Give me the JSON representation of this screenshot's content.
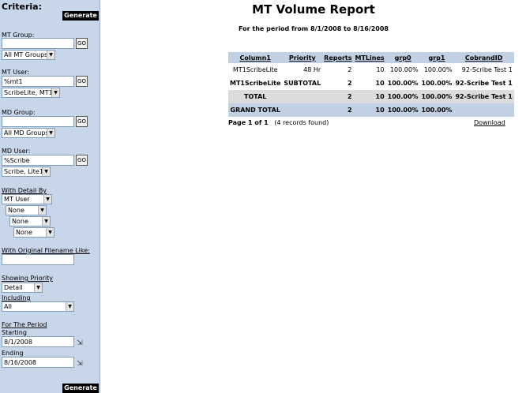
{
  "sidebar": {
    "title": "Criteria:",
    "generate_label": "Generate",
    "mt_group": {
      "label": "MT Group:",
      "value": "",
      "go": "GO",
      "select": "All MT Groups"
    },
    "mt_user": {
      "label": "MT User:",
      "value": "%mt1",
      "go": "GO",
      "select": "ScribeLite, MT1"
    },
    "md_group": {
      "label": "MD Group:",
      "value": "",
      "go": "GO",
      "select": "All MD Groups"
    },
    "md_user": {
      "label": "MD User:",
      "value": "%Scribe",
      "go": "GO",
      "select": "Scribe, Lite1"
    },
    "detail": {
      "label": "With Detail By",
      "levels": [
        "MT User",
        "None",
        "None",
        "None"
      ]
    },
    "filename": {
      "label": "With Original Filename Like:",
      "value": ""
    },
    "priority": {
      "label": "Showing Priority",
      "value": "Detail"
    },
    "including": {
      "label": "Including",
      "value": "All"
    },
    "period": {
      "label": "For The Period",
      "starting_label": "Starting",
      "starting": "8/1/2008",
      "ending_label": "Ending",
      "ending": "8/16/2008"
    }
  },
  "report": {
    "title": "MT Volume Report",
    "subtitle": "For the period from 8/1/2008 to 8/16/2008",
    "columns": [
      "Column1",
      "Priority",
      "Reports",
      "MTLines",
      "grp0",
      "grp1",
      "CobrandID"
    ],
    "rows": [
      [
        "MT1ScribeLite",
        "48 Hr",
        "2",
        "10",
        "100.00%",
        "100.00%",
        "92-Scribe Test 1"
      ],
      [
        "MT1ScribeLite",
        "SUBTOTAL",
        "2",
        "10",
        "100.00%",
        "100.00%",
        "92-Scribe Test 1"
      ],
      [
        "TOTAL",
        "",
        "2",
        "10",
        "100.00%",
        "100.00%",
        "92-Scribe Test 1"
      ],
      [
        "GRAND TOTAL",
        "",
        "2",
        "10",
        "100.00%",
        "100.00%",
        ""
      ]
    ],
    "page_label": "Page 1 of 1",
    "records": "(4 records found)",
    "download": "Download"
  }
}
